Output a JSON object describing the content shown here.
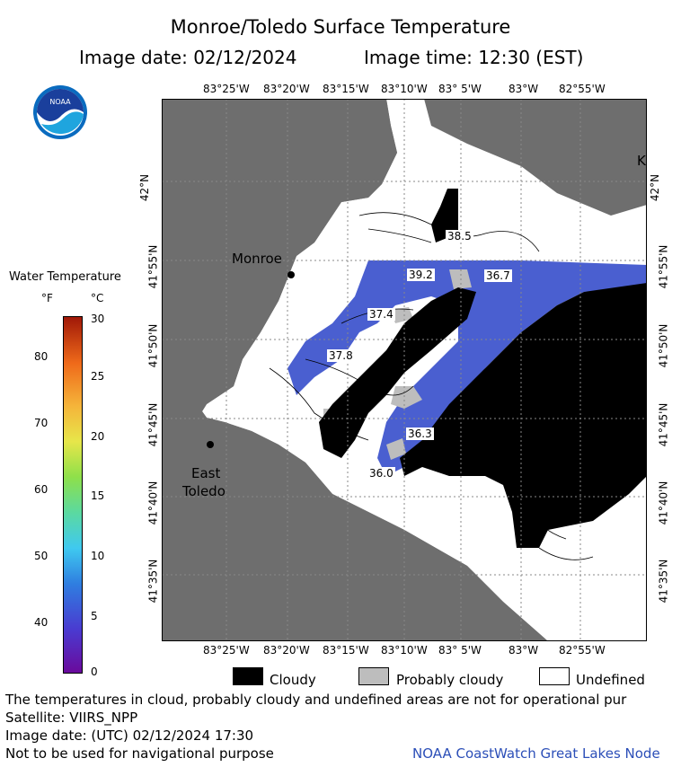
{
  "header": {
    "title": "Monroe/Toledo Surface Temperature",
    "image_date": "Image date: 02/12/2024",
    "image_time": "Image time: 12:30 (EST)"
  },
  "logo": {
    "text": "NOAA",
    "icon": "noaa-logo-icon"
  },
  "color_scale": {
    "title": "Water Temperature",
    "unit_f": "°F",
    "unit_c": "°C",
    "f_ticks": [
      "80",
      "70",
      "60",
      "50",
      "40"
    ],
    "c_ticks": [
      "30",
      "25",
      "20",
      "15",
      "10",
      "5",
      "0"
    ]
  },
  "map": {
    "top_lon_labels": [
      "83°25'W",
      "83°20'W",
      "83°15'W",
      "83°10'W",
      "83° 5'W",
      "83°W",
      "82°55'W"
    ],
    "bottom_lon_labels": [
      "83°25'W",
      "83°20'W",
      "83°15'W",
      "83°10'W",
      "83° 5'W",
      "83°W",
      "82°55'W"
    ],
    "lat_labels": [
      "42°N",
      "41°55'N",
      "41°50'N",
      "41°45'N",
      "41°40'N",
      "41°35'N"
    ],
    "cities": [
      {
        "name": "Monroe"
      },
      {
        "name": "East"
      },
      {
        "name": "Toledo"
      }
    ],
    "temperature_labels": [
      "38.5",
      "39.2",
      "36.7",
      "37.4",
      "37.8",
      "36.3",
      "36.0"
    ],
    "corner_label": "K",
    "colors": {
      "land": "#6e6e6e",
      "cloud": "#000000",
      "probably_cloudy": "#bdbdbd",
      "water": "#4a5fd0",
      "undefined": "#ffffff"
    }
  },
  "legend": {
    "cloudy": "Cloudy",
    "probably_cloudy": "Probably cloudy",
    "undefined": "Undefined"
  },
  "footer": {
    "disclaimer": "The temperatures in cloud, probably cloudy and undefined areas are not for operational pur",
    "satellite": "Satellite: VIIRS_NPP",
    "utc_date": "Image date: (UTC) 02/12/2024  17:30",
    "nav_warning": "Not to be used for navigational purpose",
    "credit": "NOAA CoastWatch Great Lakes Node"
  }
}
